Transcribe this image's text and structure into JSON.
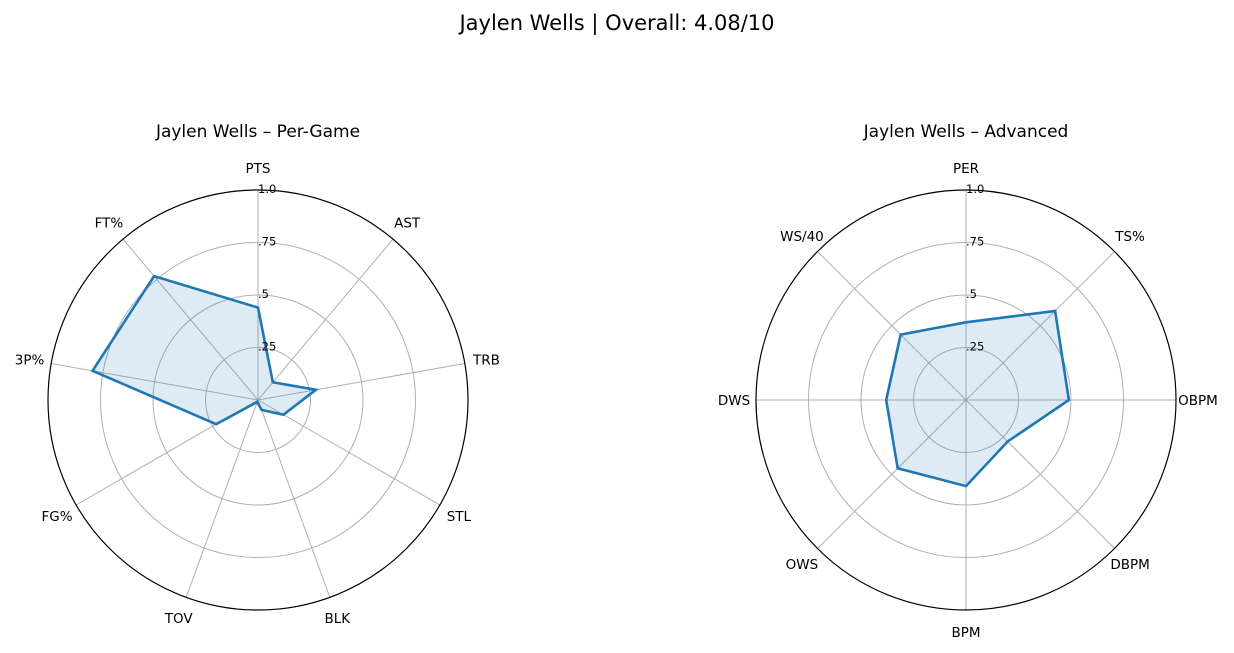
{
  "figure": {
    "title": "Jaylen Wells | Overall: 4.08/10"
  },
  "chart_data": [
    {
      "type": "radar",
      "title": "Jaylen Wells – Per-Game",
      "axes": [
        "PTS",
        "AST",
        "TRB",
        "STL",
        "BLK",
        "TOV",
        "FG%",
        "3P%",
        "FT%"
      ],
      "radial_ticks": [
        ".25",
        ".5",
        ".75",
        "1.0"
      ],
      "rlim": [
        0,
        1
      ],
      "grid": true,
      "series": [
        {
          "values": [
            0.44,
            0.11,
            0.28,
            0.14,
            0.05,
            0.01,
            0.23,
            0.8,
            0.77
          ]
        }
      ],
      "line_color": "#1f77b4",
      "fill_color": "#1f77b4"
    },
    {
      "type": "radar",
      "title": "Jaylen Wells – Advanced",
      "axes": [
        "PER",
        "TS%",
        "OBPM",
        "DBPM",
        "BPM",
        "OWS",
        "DWS",
        "WS/40"
      ],
      "radial_ticks": [
        ".25",
        ".5",
        ".75",
        "1.0"
      ],
      "rlim": [
        0,
        1
      ],
      "grid": true,
      "series": [
        {
          "values": [
            0.37,
            0.6,
            0.49,
            0.28,
            0.41,
            0.46,
            0.38,
            0.44
          ]
        }
      ],
      "line_color": "#1f77b4",
      "fill_color": "#1f77b4"
    }
  ]
}
